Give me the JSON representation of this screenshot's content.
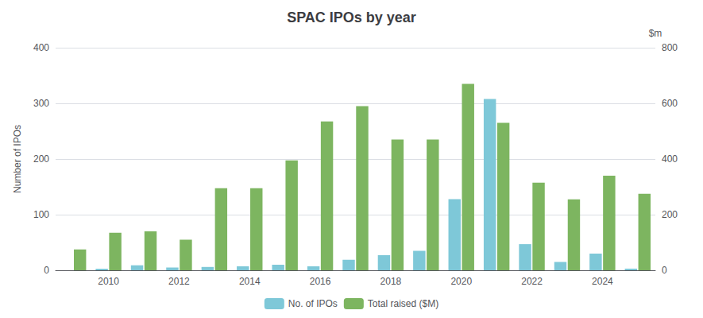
{
  "chart_data": {
    "type": "bar",
    "title": "SPAC IPOs by year",
    "categories": [
      null,
      "2010",
      null,
      "2012",
      null,
      "2014",
      null,
      "2016",
      null,
      "2018",
      null,
      "2020",
      null,
      "2022",
      null,
      "2024",
      null
    ],
    "series": [
      {
        "name": "No. of IPOs",
        "color": "#7ec8d8",
        "values": [
          0,
          3,
          9,
          5,
          6,
          7,
          10,
          7,
          19,
          27,
          35,
          128,
          308,
          47,
          15,
          30,
          3
        ]
      },
      {
        "name": "Total raised ($M)",
        "color": "#7db560",
        "axis": "y2",
        "values": [
          75,
          135,
          140,
          110,
          295,
          295,
          395,
          535,
          590,
          470,
          470,
          670,
          530,
          315,
          255,
          340,
          275
        ]
      }
    ],
    "ylabel": "Number of IPOs",
    "y2label": "$m",
    "ylim": [
      0,
      400
    ],
    "yticks": [
      0,
      100,
      200,
      300,
      400
    ],
    "y2lim": [
      0,
      800
    ],
    "y2ticks": [
      0,
      200,
      400,
      600,
      800
    ],
    "grid": true,
    "legend": "bottom"
  }
}
